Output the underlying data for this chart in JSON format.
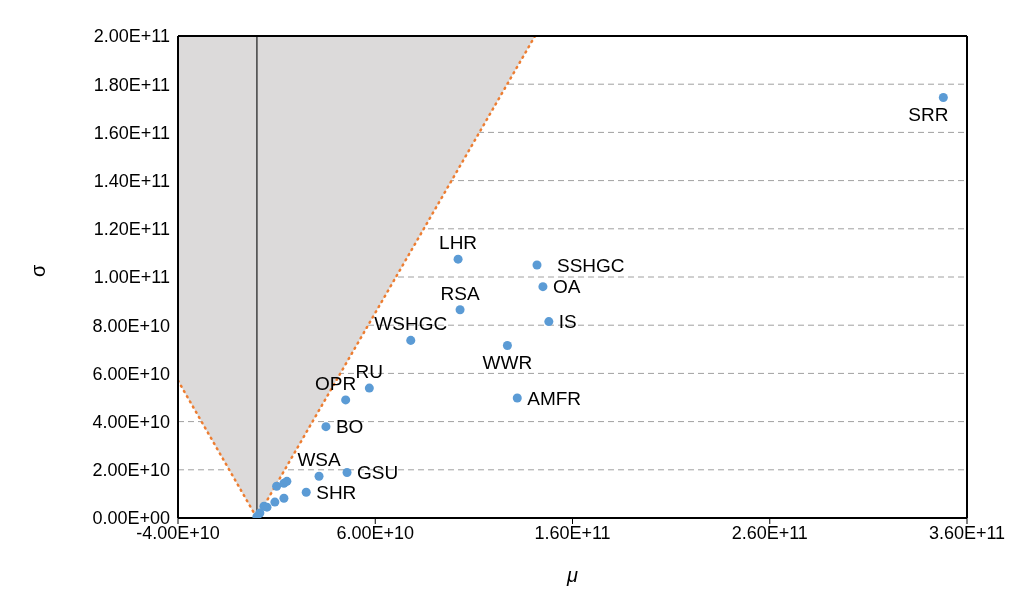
{
  "chart_data": {
    "type": "scatter",
    "xlabel": "μ",
    "ylabel": "σ",
    "xlim": [
      -40000000000,
      360000000000
    ],
    "xticks": [
      {
        "value": -40000000000,
        "label": "-4.00E+10"
      },
      {
        "value": 60000000000,
        "label": "6.00E+10"
      },
      {
        "value": 160000000000,
        "label": "1.60E+11"
      },
      {
        "value": 260000000000,
        "label": "2.60E+11"
      },
      {
        "value": 360000000000,
        "label": "3.60E+11"
      }
    ],
    "ylim": [
      0,
      200000000000
    ],
    "yticks": [
      {
        "value": 0,
        "label": "0.00E+00"
      },
      {
        "value": 20000000000,
        "label": "2.00E+10"
      },
      {
        "value": 40000000000,
        "label": "4.00E+10"
      },
      {
        "value": 60000000000,
        "label": "6.00E+10"
      },
      {
        "value": 80000000000,
        "label": "8.00E+10"
      },
      {
        "value": 100000000000,
        "label": "1.00E+11"
      },
      {
        "value": 120000000000,
        "label": "1.20E+11"
      },
      {
        "value": 140000000000,
        "label": "1.40E+11"
      },
      {
        "value": 160000000000,
        "label": "1.60E+11"
      },
      {
        "value": 180000000000,
        "label": "1.80E+11"
      },
      {
        "value": 200000000000,
        "label": "2.00E+11"
      }
    ],
    "grid": "y",
    "legend": false,
    "marker": "circle",
    "series": [
      {
        "type": "line",
        "marker": "none",
        "color": "#ed7d31",
        "line_style": "dotted",
        "x": [
          -40000000000,
          0,
          141000000000
        ],
        "values": [
          57000000000,
          0,
          200000000000
        ],
        "lower": [
          57000000000,
          0,
          200000000000
        ],
        "upper": [
          200000000000,
          200000000000,
          200000000000
        ]
      },
      {
        "color": "#5b9bd5",
        "x": [
          348000000000,
          102000000000,
          142000000000,
          145000000000,
          148000000000,
          103000000000,
          78000000000,
          127000000000,
          57000000000,
          45000000000,
          132000000000,
          35000000000,
          31500000000,
          45700000000,
          25000000000,
          10000000000,
          13700000000,
          15200000000,
          13700000000,
          9100000000,
          5100000000,
          3600000000,
          1500000000,
          0
        ],
        "values": [
          174500000000,
          107400000000,
          105000000000,
          96000000000,
          81500000000,
          86400000000,
          73700000000,
          71600000000,
          53900000000,
          49000000000,
          49800000000,
          37900000000,
          17300000000,
          18900000000,
          10700000000,
          13200000000,
          14400000000,
          15200000000,
          8200000000,
          6600000000,
          4500000000,
          4900000000,
          2100000000,
          500000000
        ]
      }
    ],
    "ref_lines": [
      {
        "axis": "x",
        "value": 0,
        "color": "#404040",
        "line_style": "solid"
      }
    ],
    "annotations": [
      {
        "text": "SRR",
        "x": 348000000000,
        "y": 174500000000
      },
      {
        "text": "LHR",
        "x": 102000000000,
        "y": 107400000000
      },
      {
        "text": "SSHGC",
        "x": 142000000000,
        "y": 105000000000
      },
      {
        "text": "OA",
        "x": 145000000000,
        "y": 96000000000
      },
      {
        "text": "IS",
        "x": 148000000000,
        "y": 81500000000
      },
      {
        "text": "RSA",
        "x": 103000000000,
        "y": 86400000000
      },
      {
        "text": "WSHGC",
        "x": 78000000000,
        "y": 73700000000
      },
      {
        "text": "WWR",
        "x": 127000000000,
        "y": 71600000000
      },
      {
        "text": "RU",
        "x": 57000000000,
        "y": 53900000000
      },
      {
        "text": "OPR",
        "x": 45000000000,
        "y": 49000000000
      },
      {
        "text": "AMFR",
        "x": 132000000000,
        "y": 49800000000
      },
      {
        "text": "BO",
        "x": 35000000000,
        "y": 37900000000
      },
      {
        "text": "WSA",
        "x": 31500000000,
        "y": 17300000000
      },
      {
        "text": "GSU",
        "x": 45700000000,
        "y": 18900000000
      },
      {
        "text": "SHR",
        "x": 25000000000,
        "y": 10700000000
      }
    ]
  }
}
